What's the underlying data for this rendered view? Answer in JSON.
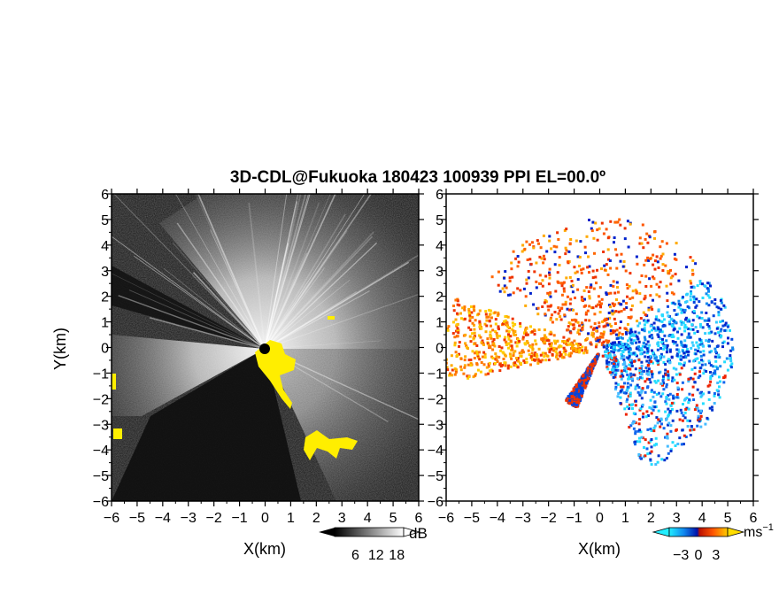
{
  "title": "3D-CDL@Fukuoka 180423 100939 PPI EL=00.0º",
  "colors": {
    "left_background": "#141414",
    "echo_white": "#f2f2f2",
    "yellow_mask": "#ffee00",
    "velocity_negative_dark": "#0022cc",
    "velocity_negative_light": "#22ddff",
    "velocity_positive_red": "#ee3300",
    "velocity_positive_orange": "#ff9900"
  },
  "chart_data": [
    {
      "type": "heatmap",
      "panel": "left",
      "quantity": "backscatter intensity",
      "colormap": "grayscale",
      "xlabel": "X(km)",
      "ylabel": "Y(km)",
      "xlim": [
        -6,
        6
      ],
      "ylim": [
        -6,
        6
      ],
      "xticks": [
        -6,
        -5,
        -4,
        -3,
        -2,
        -1,
        0,
        1,
        2,
        3,
        4,
        5,
        6
      ],
      "yticks": [
        -6,
        -5,
        -4,
        -3,
        -2,
        -1,
        0,
        1,
        2,
        3,
        4,
        5,
        6
      ],
      "colorbar": {
        "unit": "dB",
        "tick_labels": [
          "6",
          "12",
          "18"
        ],
        "range": [
          0,
          20
        ]
      }
    },
    {
      "type": "heatmap",
      "panel": "right",
      "quantity": "radial velocity",
      "colormap": "blue-cyan / red-orange diverging",
      "xlabel": "X(km)",
      "xlim": [
        -6,
        6
      ],
      "ylim": [
        -6,
        6
      ],
      "xticks": [
        -6,
        -5,
        -4,
        -3,
        -2,
        -1,
        0,
        1,
        2,
        3,
        4,
        5,
        6
      ],
      "yticks": [
        -6,
        -5,
        -4,
        -3,
        -2,
        -1,
        0,
        1,
        2,
        3,
        4,
        5,
        6
      ],
      "colorbar": {
        "unit": "ms",
        "unit_exponent": "−1",
        "tick_labels": [
          "−3",
          "0",
          "3"
        ],
        "range": [
          -5,
          5
        ]
      }
    }
  ]
}
